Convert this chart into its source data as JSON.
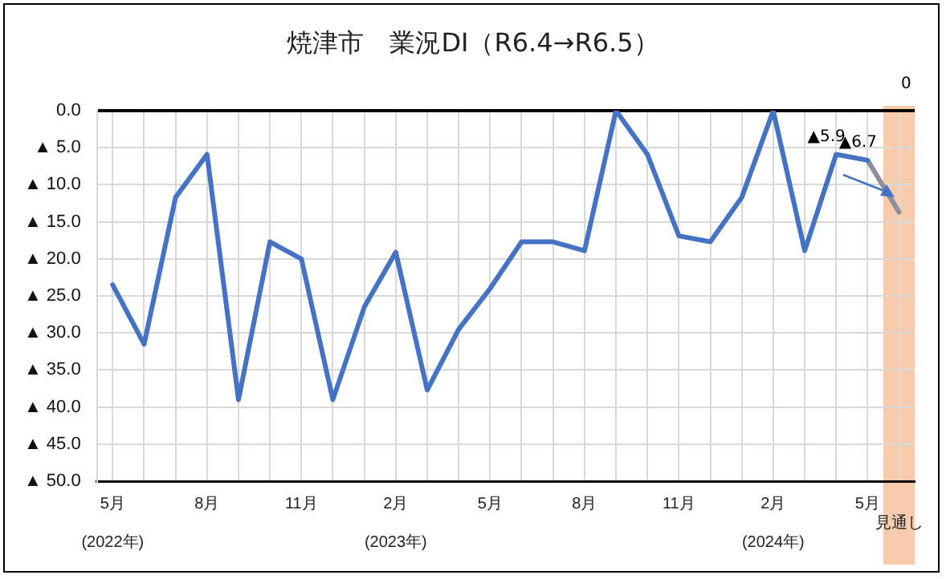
{
  "chart_data": {
    "type": "line",
    "title": "焼津市　業況DI（R6.4→R6.5）",
    "categories": [
      "5月\n(2022年)",
      null,
      null,
      "8月",
      null,
      null,
      "11月",
      null,
      null,
      "2月\n(2023年)",
      null,
      null,
      "5月",
      null,
      null,
      "8月",
      null,
      null,
      "11月",
      null,
      null,
      "2月\n(2024年)",
      null,
      null,
      "5月",
      "見通し"
    ],
    "series": [
      {
        "color": "#4472c4",
        "values": [
          23.5,
          31.5,
          11.7,
          5.9,
          39,
          17.7,
          20,
          39,
          26.5,
          19.1,
          37.7,
          29.5,
          24,
          17.7,
          17.7,
          18.9,
          0,
          5.9,
          16.9,
          17.7,
          11.7,
          0,
          18.9,
          5.9,
          6.7,
          null
        ],
        "value_labels": [
          null,
          null,
          null,
          null,
          null,
          null,
          null,
          null,
          null,
          null,
          null,
          null,
          null,
          null,
          null,
          null,
          null,
          null,
          null,
          null,
          null,
          null,
          null,
          "▲5.9",
          "▲6.7",
          null
        ]
      },
      {
        "color": "#8e8e9e",
        "values": [
          null,
          null,
          null,
          null,
          null,
          null,
          null,
          null,
          null,
          null,
          null,
          null,
          null,
          null,
          null,
          null,
          null,
          null,
          null,
          null,
          null,
          null,
          null,
          null,
          6.7,
          13.7
        ]
      }
    ],
    "ylim": [
      50,
      0
    ],
    "yticks": [
      {
        "value": 0,
        "label": "0.0"
      },
      {
        "value": 5,
        "label": "▲ 5.0"
      },
      {
        "value": 10,
        "label": "▲ 10.0"
      },
      {
        "value": 15,
        "label": "▲ 15.0"
      },
      {
        "value": 20,
        "label": "▲ 20.0"
      },
      {
        "value": 25,
        "label": "▲ 25.0"
      },
      {
        "value": 30,
        "label": "▲ 30.0"
      },
      {
        "value": 35,
        "label": "▲ 35.0"
      },
      {
        "value": 40,
        "label": "▲ 40.0"
      },
      {
        "value": 45,
        "label": "▲ 45.0"
      },
      {
        "value": 50,
        "label": "▲ 50.0"
      }
    ],
    "bands": [
      {
        "axis": "x",
        "from": "見通し",
        "to": "見通し",
        "color": "#f8cbad"
      }
    ],
    "annotations": [
      "0"
    ],
    "grid": true,
    "legend": false,
    "marker": "none",
    "line_style": "solid"
  }
}
